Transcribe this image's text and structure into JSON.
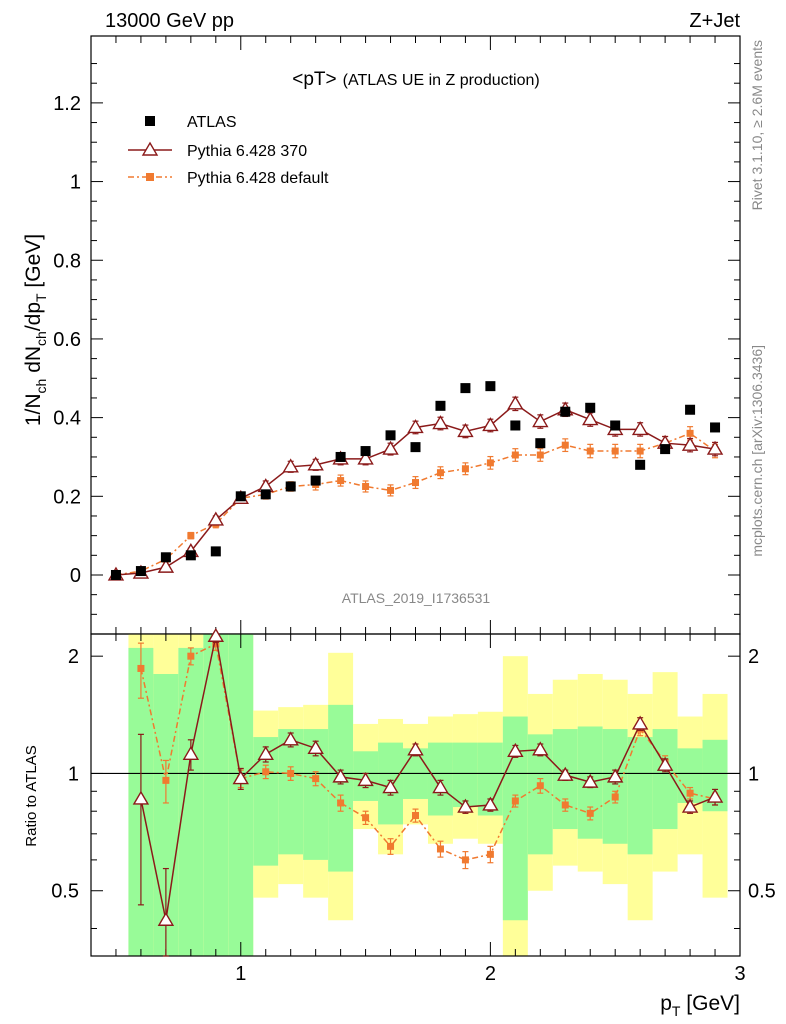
{
  "header": {
    "left": "13000 GeV pp",
    "right": "Z+Jet"
  },
  "side_text": {
    "rivet": "Rivet 3.1.10, ≥ 2.6M events",
    "mcplots": "mcplots.cern.ch [arXiv:1306.3436]"
  },
  "analysis_id": "ATLAS_2019_I1736531",
  "colors": {
    "atlas": "#000000",
    "pythia370": "#8b1a1a",
    "pythia_default": "#f07a30",
    "band_inner": "#98fb98",
    "band_outer": "#ffff99"
  },
  "chart_data": [
    {
      "type": "scatter",
      "title": "<pT>",
      "subtitle": "(ATLAS UE in Z production)",
      "ylabel": "1/N_ch dN_ch/dp_T [GeV]",
      "ylim": [
        -0.15,
        1.37
      ],
      "xlim": [
        0.4,
        3.0
      ],
      "yticks": [
        "0",
        "0.2",
        "0.4",
        "0.6",
        "0.8",
        "1",
        "1.2"
      ],
      "legend": [
        {
          "label": "ATLAS",
          "key": "atlas"
        },
        {
          "label": "Pythia 6.428 370",
          "key": "pythia370"
        },
        {
          "label": "Pythia 6.428 default",
          "key": "pythia_default"
        }
      ],
      "x": [
        0.5,
        0.6,
        0.7,
        0.8,
        0.9,
        1.0,
        1.1,
        1.2,
        1.3,
        1.4,
        1.5,
        1.6,
        1.7,
        1.8,
        1.9,
        2.0,
        2.1,
        2.2,
        2.3,
        2.4,
        2.5,
        2.6,
        2.7,
        2.8,
        2.9
      ],
      "series": [
        {
          "name": "ATLAS",
          "key": "atlas",
          "values": [
            0.0,
            0.01,
            0.045,
            0.05,
            0.06,
            0.2,
            0.205,
            0.225,
            0.24,
            0.3,
            0.315,
            0.355,
            0.325,
            0.43,
            0.475,
            0.48,
            0.38,
            0.335,
            0.415,
            0.425,
            0.38,
            0.28,
            0.32,
            0.42,
            0.375
          ]
        },
        {
          "name": "Pythia 6.428 370",
          "key": "pythia370",
          "values": [
            0.0,
            0.005,
            0.02,
            0.06,
            0.14,
            0.195,
            0.225,
            0.275,
            0.28,
            0.295,
            0.295,
            0.32,
            0.375,
            0.385,
            0.365,
            0.38,
            0.435,
            0.39,
            0.42,
            0.395,
            0.37,
            0.37,
            0.335,
            0.33,
            0.32
          ],
          "errors": [
            0.005,
            0.005,
            0.005,
            0.008,
            0.01,
            0.012,
            0.014,
            0.014,
            0.014,
            0.015,
            0.015,
            0.015,
            0.016,
            0.016,
            0.016,
            0.016,
            0.017,
            0.017,
            0.017,
            0.017,
            0.017,
            0.017,
            0.017,
            0.017,
            0.017
          ]
        },
        {
          "name": "Pythia 6.428 default",
          "key": "pythia_default",
          "values": [
            0.0,
            0.01,
            0.04,
            0.1,
            0.13,
            0.195,
            0.205,
            0.225,
            0.23,
            0.24,
            0.225,
            0.215,
            0.235,
            0.26,
            0.27,
            0.285,
            0.305,
            0.305,
            0.33,
            0.315,
            0.315,
            0.315,
            0.335,
            0.36,
            0.315
          ],
          "errors": [
            0.005,
            0.005,
            0.005,
            0.008,
            0.01,
            0.012,
            0.012,
            0.012,
            0.014,
            0.014,
            0.014,
            0.014,
            0.015,
            0.015,
            0.015,
            0.016,
            0.016,
            0.016,
            0.016,
            0.017,
            0.017,
            0.017,
            0.017,
            0.017,
            0.017
          ]
        }
      ]
    },
    {
      "type": "line",
      "ylabel": "Ratio to ATLAS",
      "xlabel": "p_T [GeV]",
      "ylim": [
        0.34,
        2.28
      ],
      "xlim": [
        0.4,
        3.0
      ],
      "xticks": [
        "1",
        "2",
        "3"
      ],
      "yticks": [
        "0.5",
        "1",
        "2"
      ],
      "bin_edges": [
        0.55,
        0.65,
        0.75,
        0.85,
        0.95,
        1.05,
        1.15,
        1.25,
        1.35,
        1.45,
        1.55,
        1.65,
        1.75,
        1.85,
        1.95,
        2.05,
        2.15,
        2.25,
        2.35,
        2.45,
        2.55,
        2.65,
        2.75,
        2.85,
        2.95
      ],
      "band_inner": {
        "low": [
          0.34,
          0.34,
          0.34,
          0.34,
          0.34,
          0.58,
          0.62,
          0.6,
          0.56,
          0.85,
          0.74,
          0.86,
          0.78,
          0.82,
          0.78,
          0.42,
          0.62,
          0.72,
          0.68,
          0.66,
          0.62,
          0.72,
          0.84,
          0.8
        ],
        "high": [
          2.1,
          1.8,
          2.1,
          2.28,
          2.28,
          1.24,
          1.3,
          1.3,
          1.5,
          1.14,
          1.2,
          1.16,
          1.2,
          1.2,
          1.2,
          1.4,
          1.26,
          1.3,
          1.32,
          1.3,
          1.24,
          1.3,
          1.16,
          1.22
        ]
      },
      "band_outer": {
        "low": [
          0.34,
          0.34,
          0.34,
          0.34,
          0.34,
          0.48,
          0.52,
          0.48,
          0.42,
          0.72,
          0.62,
          0.74,
          0.66,
          0.68,
          0.66,
          0.34,
          0.5,
          0.58,
          0.56,
          0.52,
          0.42,
          0.56,
          0.62,
          0.48
        ],
        "high": [
          2.28,
          2.28,
          2.28,
          2.28,
          2.28,
          1.45,
          1.48,
          1.5,
          2.04,
          1.34,
          1.38,
          1.34,
          1.4,
          1.42,
          1.44,
          2.0,
          1.6,
          1.74,
          1.8,
          1.74,
          1.6,
          1.82,
          1.4,
          1.6
        ]
      },
      "series": [
        {
          "name": "Pythia 6.428 370",
          "key": "pythia370",
          "x": [
            0.6,
            0.7,
            0.8,
            0.9,
            1.0,
            1.1,
            1.2,
            1.3,
            1.4,
            1.5,
            1.6,
            1.7,
            1.8,
            1.9,
            2.0,
            2.1,
            2.2,
            2.3,
            2.4,
            2.5,
            2.6,
            2.7,
            2.8,
            2.9
          ],
          "values": [
            0.86,
            0.42,
            1.12,
            2.25,
            0.97,
            1.12,
            1.22,
            1.16,
            0.98,
            0.96,
            0.92,
            1.15,
            0.92,
            0.82,
            0.83,
            1.14,
            1.15,
            0.99,
            0.95,
            0.98,
            1.34,
            1.05,
            0.82,
            0.87
          ],
          "errors": [
            0.4,
            0.15,
            0.1,
            0.08,
            0.06,
            0.05,
            0.05,
            0.05,
            0.04,
            0.04,
            0.04,
            0.04,
            0.04,
            0.03,
            0.03,
            0.04,
            0.04,
            0.03,
            0.03,
            0.04,
            0.05,
            0.04,
            0.03,
            0.04
          ]
        },
        {
          "name": "Pythia 6.428 default",
          "key": "pythia_default",
          "x": [
            0.6,
            0.7,
            0.8,
            0.9,
            1.0,
            1.1,
            1.2,
            1.3,
            1.4,
            1.5,
            1.6,
            1.7,
            1.8,
            1.9,
            2.0,
            2.1,
            2.2,
            2.3,
            2.4,
            2.5,
            2.6,
            2.7,
            2.8,
            2.9
          ],
          "values": [
            1.86,
            0.96,
            2.0,
            2.15,
            0.97,
            1.01,
            1.0,
            0.97,
            0.84,
            0.77,
            0.65,
            0.78,
            0.64,
            0.6,
            0.62,
            0.85,
            0.93,
            0.83,
            0.79,
            0.87,
            1.3,
            1.07,
            0.89,
            0.86
          ],
          "errors": [
            0.3,
            0.12,
            0.1,
            0.08,
            0.05,
            0.04,
            0.04,
            0.04,
            0.04,
            0.03,
            0.03,
            0.03,
            0.03,
            0.03,
            0.03,
            0.03,
            0.04,
            0.03,
            0.03,
            0.03,
            0.05,
            0.04,
            0.03,
            0.03
          ]
        }
      ]
    }
  ]
}
